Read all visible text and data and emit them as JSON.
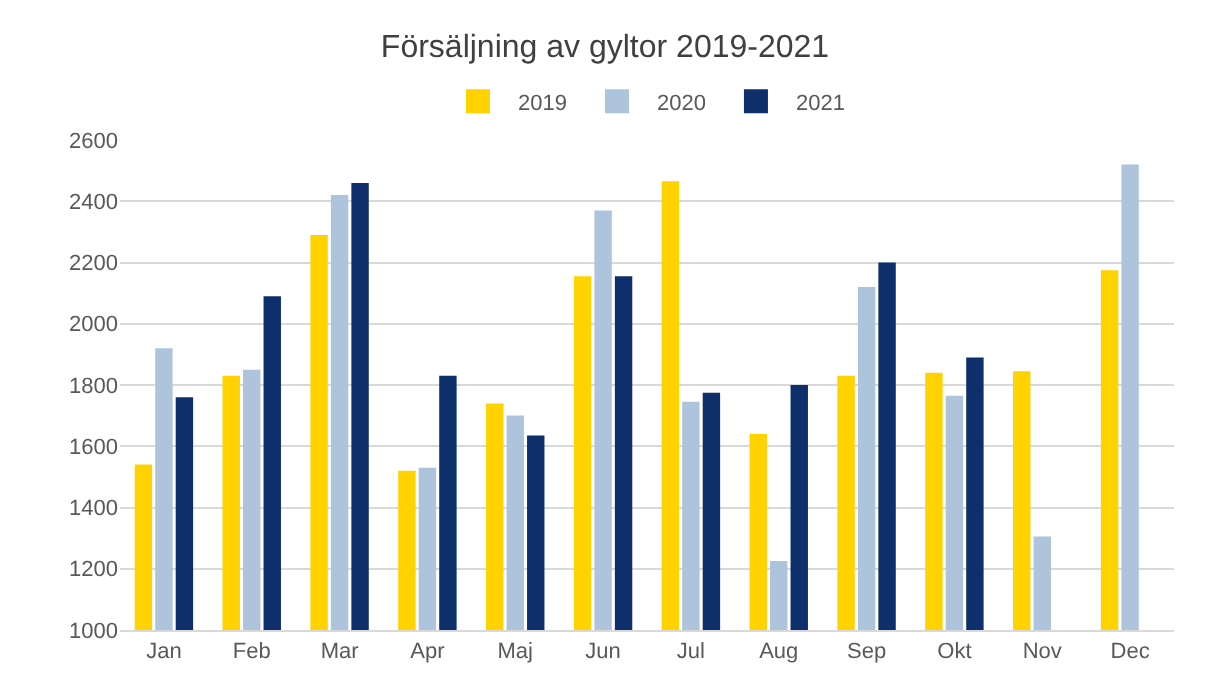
{
  "chart_data": {
    "type": "bar",
    "title": "Försäljning av gyltor 2019-2021",
    "categories": [
      "Jan",
      "Feb",
      "Mar",
      "Apr",
      "Maj",
      "Jun",
      "Jul",
      "Aug",
      "Sep",
      "Okt",
      "Nov",
      "Dec"
    ],
    "series": [
      {
        "name": "2019",
        "color": "#ffd200",
        "values": [
          1540,
          1830,
          2290,
          1520,
          1740,
          2155,
          2465,
          1640,
          1830,
          1840,
          1845,
          2175
        ]
      },
      {
        "name": "2020",
        "color": "#adc4dc",
        "values": [
          1920,
          1850,
          2420,
          1530,
          1700,
          2370,
          1745,
          1225,
          2120,
          1765,
          1305,
          2520
        ]
      },
      {
        "name": "2021",
        "color": "#0e2f6b",
        "values": [
          1760,
          2090,
          2460,
          1830,
          1635,
          2155,
          1775,
          1800,
          2200,
          1890,
          null,
          null
        ]
      }
    ],
    "ylim": [
      1000,
      2600
    ],
    "yticks": [
      1000,
      1200,
      1400,
      1600,
      1800,
      2000,
      2200,
      2400,
      2600
    ],
    "grid": "y",
    "legend": "top"
  }
}
